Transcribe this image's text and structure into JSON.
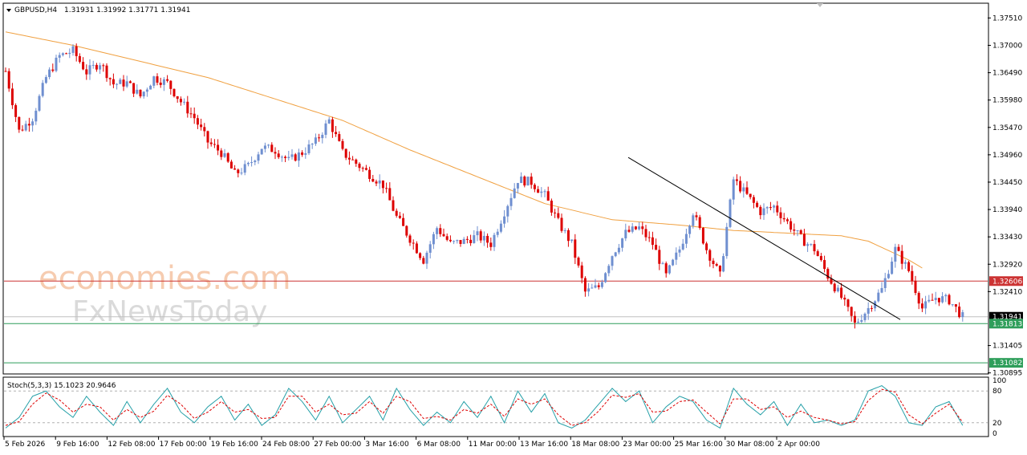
{
  "header": {
    "symbol": "GBPUSD,H4",
    "ohlc": "1.31931 1.31992 1.31771 1.31941"
  },
  "watermark": {
    "line1": "economies.com",
    "line2": "FxNewsToday"
  },
  "colors": {
    "bull": "#6f8fd0",
    "bear": "#dd0000",
    "ma": "#f0a040",
    "resistance": "#cc3333",
    "support": "#2e9e5a",
    "stoch_main": "#26a0a8",
    "stoch_signal": "#dd0000"
  },
  "chart_data": [
    {
      "type": "candlestick",
      "symbol": "GBPUSD",
      "timeframe": "H4",
      "ylim": [
        1.3089,
        1.3777
      ],
      "y_ticks": [
        "1.37510",
        "1.37000",
        "1.36490",
        "1.35980",
        "1.35470",
        "1.34960",
        "1.34450",
        "1.33940",
        "1.33430",
        "1.32920",
        "1.32410",
        "1.31405",
        "1.30895"
      ],
      "x_labels": [
        "5 Feb 2026",
        "9 Feb 16:00",
        "12 Feb 08:00",
        "17 Feb 00:00",
        "19 Feb 16:00",
        "24 Feb 08:00",
        "27 Feb 00:00",
        "3 Mar 16:00",
        "6 Mar 08:00",
        "11 Mar 00:00",
        "13 Mar 16:00",
        "18 Mar 08:00",
        "23 Mar 00:00",
        "25 Mar 16:00",
        "30 Mar 08:00",
        "2 Apr 00:00"
      ],
      "levels": [
        {
          "label": "1.32606",
          "value": 1.32606,
          "role": "resistance"
        },
        {
          "label": "1.31941",
          "value": 1.31941,
          "role": "current"
        },
        {
          "label": "1.31813",
          "value": 1.31813,
          "role": "support"
        },
        {
          "label": "1.31082",
          "value": 1.31082,
          "role": "support"
        }
      ],
      "trendline": {
        "from": [
          1.3491,
          0
        ],
        "to": [
          1.3189,
          1
        ]
      },
      "close_path": [
        [
          0,
          1.3652
        ],
        [
          4,
          1.354
        ],
        [
          8,
          1.3565
        ],
        [
          12,
          1.364
        ],
        [
          16,
          1.368
        ],
        [
          20,
          1.369
        ],
        [
          24,
          1.365
        ],
        [
          28,
          1.3668
        ],
        [
          32,
          1.3628
        ],
        [
          36,
          1.363
        ],
        [
          40,
          1.3605
        ],
        [
          44,
          1.364
        ],
        [
          48,
          1.363
        ],
        [
          52,
          1.3595
        ],
        [
          56,
          1.3565
        ],
        [
          60,
          1.352
        ],
        [
          64,
          1.35
        ],
        [
          68,
          1.346
        ],
        [
          72,
          1.3475
        ],
        [
          76,
          1.351
        ],
        [
          80,
          1.3505
        ],
        [
          84,
          1.3485
        ],
        [
          88,
          1.35
        ],
        [
          92,
          1.352
        ],
        [
          96,
          1.356
        ],
        [
          100,
          1.35
        ],
        [
          104,
          1.348
        ],
        [
          108,
          1.346
        ],
        [
          112,
          1.344
        ],
        [
          116,
          1.338
        ],
        [
          120,
          1.334
        ],
        [
          124,
          1.33
        ],
        [
          128,
          1.336
        ],
        [
          132,
          1.333
        ],
        [
          136,
          1.3335
        ],
        [
          140,
          1.3345
        ],
        [
          144,
          1.333
        ],
        [
          148,
          1.339
        ],
        [
          152,
          1.345
        ],
        [
          156,
          1.3445
        ],
        [
          160,
          1.342
        ],
        [
          164,
          1.337
        ],
        [
          168,
          1.333
        ],
        [
          172,
          1.324
        ],
        [
          176,
          1.325
        ],
        [
          180,
          1.331
        ],
        [
          184,
          1.335
        ],
        [
          188,
          1.336
        ],
        [
          192,
          1.333
        ],
        [
          196,
          1.327
        ],
        [
          200,
          1.332
        ],
        [
          204,
          1.339
        ],
        [
          208,
          1.332
        ],
        [
          212,
          1.327
        ],
        [
          216,
          1.345
        ],
        [
          220,
          1.342
        ],
        [
          224,
          1.339
        ],
        [
          228,
          1.34
        ],
        [
          232,
          1.337
        ],
        [
          236,
          1.334
        ],
        [
          240,
          1.332
        ],
        [
          244,
          1.327
        ],
        [
          248,
          1.323
        ],
        [
          252,
          1.318
        ],
        [
          256,
          1.321
        ],
        [
          260,
          1.3245
        ],
        [
          264,
          1.332
        ],
        [
          268,
          1.328
        ],
        [
          272,
          1.321
        ],
        [
          276,
          1.323
        ],
        [
          280,
          1.3225
        ],
        [
          284,
          1.3194
        ]
      ],
      "ma_path": [
        [
          0,
          1.3725
        ],
        [
          20,
          1.37
        ],
        [
          40,
          1.367
        ],
        [
          60,
          1.364
        ],
        [
          80,
          1.36
        ],
        [
          100,
          1.356
        ],
        [
          120,
          1.3505
        ],
        [
          140,
          1.3455
        ],
        [
          160,
          1.3405
        ],
        [
          180,
          1.3375
        ],
        [
          200,
          1.3365
        ],
        [
          216,
          1.3355
        ],
        [
          232,
          1.335
        ],
        [
          248,
          1.3345
        ],
        [
          256,
          1.3335
        ],
        [
          268,
          1.33
        ],
        [
          272,
          1.3285
        ]
      ]
    },
    {
      "type": "line",
      "indicator": "Stoch(5,3,3)",
      "title": "Stoch(5,3,3) 15.1023 20.9646",
      "ylim": [
        0,
        100
      ],
      "y_ticks": [
        "100",
        "80",
        "20",
        "0"
      ],
      "main_path": [
        [
          0,
          10
        ],
        [
          4,
          30
        ],
        [
          8,
          70
        ],
        [
          12,
          80
        ],
        [
          16,
          50
        ],
        [
          20,
          30
        ],
        [
          24,
          70
        ],
        [
          28,
          40
        ],
        [
          32,
          15
        ],
        [
          36,
          60
        ],
        [
          40,
          20
        ],
        [
          44,
          55
        ],
        [
          48,
          85
        ],
        [
          52,
          40
        ],
        [
          56,
          20
        ],
        [
          60,
          50
        ],
        [
          64,
          70
        ],
        [
          68,
          25
        ],
        [
          72,
          55
        ],
        [
          76,
          15
        ],
        [
          80,
          35
        ],
        [
          84,
          85
        ],
        [
          88,
          60
        ],
        [
          92,
          25
        ],
        [
          96,
          70
        ],
        [
          100,
          20
        ],
        [
          104,
          45
        ],
        [
          108,
          70
        ],
        [
          112,
          25
        ],
        [
          116,
          85
        ],
        [
          120,
          45
        ],
        [
          124,
          15
        ],
        [
          128,
          40
        ],
        [
          132,
          20
        ],
        [
          136,
          60
        ],
        [
          140,
          30
        ],
        [
          144,
          70
        ],
        [
          148,
          20
        ],
        [
          152,
          80
        ],
        [
          156,
          40
        ],
        [
          160,
          75
        ],
        [
          164,
          20
        ],
        [
          168,
          10
        ],
        [
          172,
          25
        ],
        [
          176,
          55
        ],
        [
          180,
          85
        ],
        [
          184,
          60
        ],
        [
          188,
          80
        ],
        [
          192,
          20
        ],
        [
          196,
          50
        ],
        [
          200,
          70
        ],
        [
          204,
          60
        ],
        [
          208,
          25
        ],
        [
          212,
          10
        ],
        [
          216,
          85
        ],
        [
          220,
          55
        ],
        [
          224,
          35
        ],
        [
          228,
          60
        ],
        [
          232,
          15
        ],
        [
          236,
          55
        ],
        [
          240,
          20
        ],
        [
          244,
          25
        ],
        [
          248,
          15
        ],
        [
          252,
          25
        ],
        [
          256,
          80
        ],
        [
          260,
          90
        ],
        [
          264,
          70
        ],
        [
          268,
          20
        ],
        [
          272,
          15
        ],
        [
          276,
          50
        ],
        [
          280,
          60
        ],
        [
          284,
          15
        ]
      ],
      "signal_path": [
        [
          0,
          15
        ],
        [
          4,
          22
        ],
        [
          8,
          55
        ],
        [
          12,
          76
        ],
        [
          16,
          63
        ],
        [
          20,
          40
        ],
        [
          24,
          55
        ],
        [
          28,
          50
        ],
        [
          32,
          25
        ],
        [
          36,
          45
        ],
        [
          40,
          30
        ],
        [
          44,
          42
        ],
        [
          48,
          72
        ],
        [
          52,
          55
        ],
        [
          56,
          28
        ],
        [
          60,
          40
        ],
        [
          64,
          60
        ],
        [
          68,
          40
        ],
        [
          72,
          45
        ],
        [
          76,
          28
        ],
        [
          80,
          30
        ],
        [
          84,
          70
        ],
        [
          88,
          70
        ],
        [
          92,
          40
        ],
        [
          96,
          55
        ],
        [
          100,
          35
        ],
        [
          104,
          38
        ],
        [
          108,
          60
        ],
        [
          112,
          38
        ],
        [
          116,
          70
        ],
        [
          120,
          60
        ],
        [
          124,
          28
        ],
        [
          128,
          32
        ],
        [
          132,
          25
        ],
        [
          136,
          45
        ],
        [
          140,
          38
        ],
        [
          144,
          55
        ],
        [
          148,
          32
        ],
        [
          152,
          65
        ],
        [
          156,
          55
        ],
        [
          160,
          65
        ],
        [
          164,
          35
        ],
        [
          168,
          15
        ],
        [
          172,
          20
        ],
        [
          176,
          42
        ],
        [
          180,
          72
        ],
        [
          184,
          68
        ],
        [
          188,
          75
        ],
        [
          192,
          40
        ],
        [
          196,
          42
        ],
        [
          200,
          60
        ],
        [
          204,
          63
        ],
        [
          208,
          40
        ],
        [
          212,
          18
        ],
        [
          216,
          65
        ],
        [
          220,
          65
        ],
        [
          224,
          45
        ],
        [
          228,
          50
        ],
        [
          232,
          30
        ],
        [
          236,
          42
        ],
        [
          240,
          30
        ],
        [
          244,
          25
        ],
        [
          248,
          18
        ],
        [
          252,
          22
        ],
        [
          256,
          62
        ],
        [
          260,
          83
        ],
        [
          264,
          78
        ],
        [
          268,
          35
        ],
        [
          272,
          18
        ],
        [
          276,
          38
        ],
        [
          280,
          55
        ],
        [
          284,
          21
        ]
      ]
    }
  ]
}
